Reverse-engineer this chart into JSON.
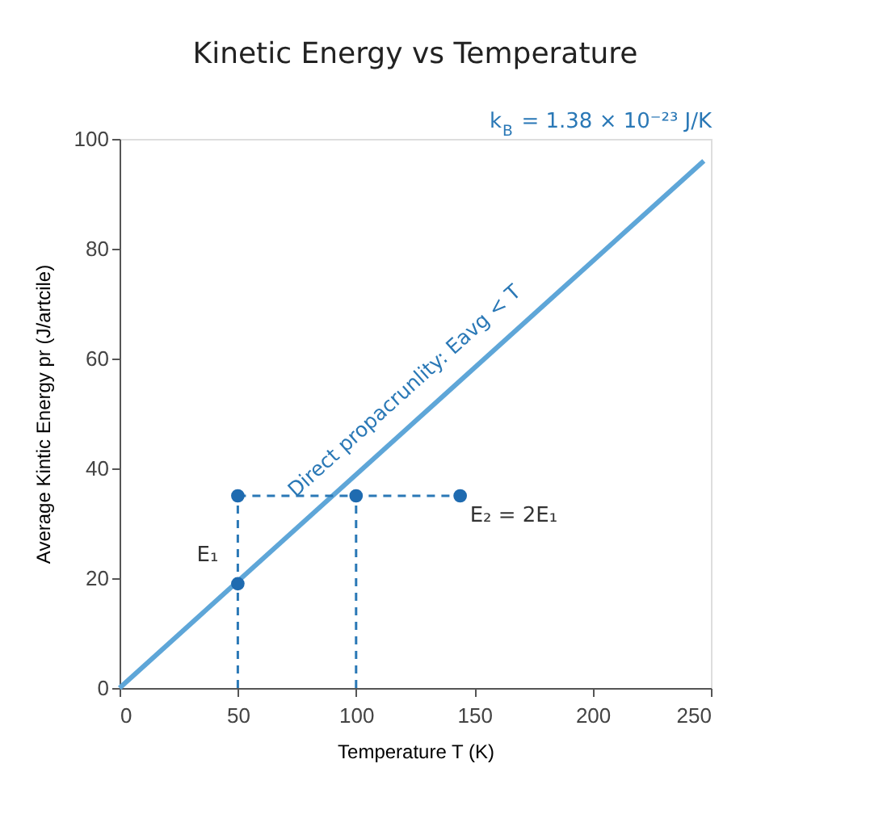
{
  "chart_data": {
    "type": "line",
    "title": "Kinetic Energy vs Temperature",
    "xlabel": "Temperature T (K)",
    "ylabel": "Average Kintic Energy pr  (J/artcile)",
    "xlim": [
      0,
      250
    ],
    "xticks": [
      0,
      50,
      100,
      150,
      200,
      250
    ],
    "ylim": [
      0,
      100
    ],
    "yticks": [
      0,
      20,
      40,
      60,
      80,
      100
    ],
    "grid": false,
    "series": [
      {
        "color": "#5ea6d8",
        "line_style": "solid",
        "x": [
          0,
          247
        ],
        "values": [
          0,
          96
        ]
      },
      {
        "color": "#2a78b6",
        "line_style": "dashed",
        "x": [
          50,
          50
        ],
        "values": [
          0,
          35
        ]
      },
      {
        "color": "#2a78b6",
        "line_style": "dashed",
        "x": [
          100,
          100
        ],
        "values": [
          0,
          35
        ]
      },
      {
        "color": "#2a78b6",
        "line_style": "dashed",
        "x": [
          50,
          144
        ],
        "values": [
          35,
          35
        ]
      },
      {
        "type": "scatter",
        "color": "#1f6bb0",
        "marker": "circle",
        "x": [
          50,
          50,
          100,
          144
        ],
        "values": [
          19,
          35,
          35,
          35
        ]
      }
    ],
    "annotations": [
      "k$_{B}$ = 1.38 × 10⁻²³ J/K",
      "E₁",
      "E₂ = 2E₁",
      "Direct propacrunlity: Eavg < T"
    ]
  }
}
